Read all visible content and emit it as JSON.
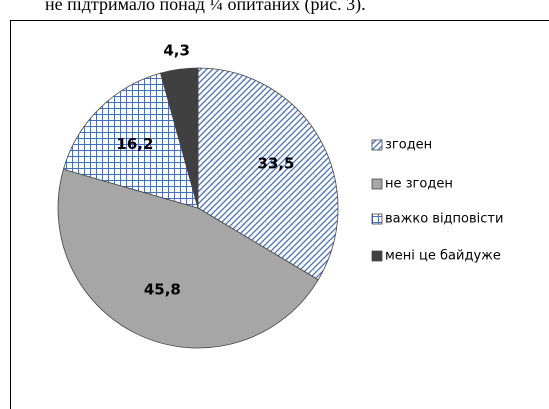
{
  "caption": "не підтримало понад ¼ опитаних (рис. 3).",
  "chart_data": {
    "type": "pie",
    "categories": [
      "згоден",
      "не згоден",
      "важко відповісти",
      "мені це байдуже"
    ],
    "values": [
      33.5,
      45.8,
      16.2,
      4.3
    ],
    "value_labels": [
      "33,5",
      "45,8",
      "16,2",
      "4,3"
    ],
    "colors": [
      "#4a6fb5",
      "#a6a6a6",
      "#4a6fb5",
      "#404040"
    ],
    "hatches": [
      "diagonal",
      "none",
      "grid",
      "none"
    ],
    "legend": "right"
  }
}
